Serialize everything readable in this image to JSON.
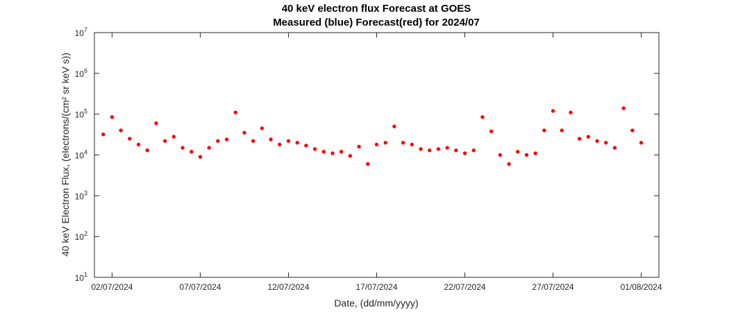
{
  "chart_data": {
    "type": "scatter",
    "title": "40 keV electron flux Forecast at GOES",
    "subtitle": "Measured (blue) Forecast(red) for 2024/07",
    "xlabel": "Date, (dd/mm/yyyy)",
    "ylabel": "40 keV Electron Flux, (electrons/(cm² sr keV s))",
    "yscale": "log",
    "ylim": [
      10,
      10000000
    ],
    "xlim": [
      "2024-07-01T00:00",
      "2024-08-02T00:00"
    ],
    "grid": false,
    "x_ticks": [
      "02/07/2024",
      "07/07/2024",
      "12/07/2024",
      "17/07/2024",
      "22/07/2024",
      "27/07/2024",
      "01/08/2024"
    ],
    "y_ticks": [
      {
        "base": "10",
        "exp": "1"
      },
      {
        "base": "10",
        "exp": "2"
      },
      {
        "base": "10",
        "exp": "3"
      },
      {
        "base": "10",
        "exp": "4"
      },
      {
        "base": "10",
        "exp": "5"
      },
      {
        "base": "10",
        "exp": "6"
      },
      {
        "base": "10",
        "exp": "7"
      }
    ],
    "marker_color": "#ff0000",
    "series": [
      {
        "x": [
          "2024-07-01T12:00",
          "2024-07-02T00:00",
          "2024-07-02T12:00",
          "2024-07-03T00:00",
          "2024-07-03T12:00",
          "2024-07-04T00:00",
          "2024-07-04T12:00",
          "2024-07-05T00:00",
          "2024-07-05T12:00",
          "2024-07-06T00:00",
          "2024-07-06T12:00",
          "2024-07-07T00:00",
          "2024-07-07T12:00",
          "2024-07-08T00:00",
          "2024-07-08T12:00",
          "2024-07-09T00:00",
          "2024-07-09T12:00",
          "2024-07-10T00:00",
          "2024-07-10T12:00",
          "2024-07-11T00:00",
          "2024-07-11T12:00",
          "2024-07-12T00:00",
          "2024-07-12T12:00",
          "2024-07-13T00:00",
          "2024-07-13T12:00",
          "2024-07-14T00:00",
          "2024-07-14T12:00",
          "2024-07-15T00:00",
          "2024-07-15T12:00",
          "2024-07-16T00:00",
          "2024-07-16T12:00",
          "2024-07-17T00:00",
          "2024-07-17T12:00",
          "2024-07-18T00:00",
          "2024-07-18T12:00",
          "2024-07-19T00:00",
          "2024-07-19T12:00",
          "2024-07-20T00:00",
          "2024-07-20T12:00",
          "2024-07-21T00:00",
          "2024-07-21T12:00",
          "2024-07-22T00:00",
          "2024-07-22T12:00",
          "2024-07-23T00:00",
          "2024-07-23T12:00",
          "2024-07-24T00:00",
          "2024-07-24T12:00",
          "2024-07-25T00:00",
          "2024-07-25T12:00",
          "2024-07-26T00:00",
          "2024-07-26T12:00",
          "2024-07-27T00:00",
          "2024-07-27T12:00",
          "2024-07-28T00:00",
          "2024-07-28T12:00",
          "2024-07-29T00:00",
          "2024-07-29T12:00",
          "2024-07-30T00:00",
          "2024-07-30T12:00",
          "2024-07-31T00:00",
          "2024-07-31T12:00",
          "2024-08-01T00:00"
        ],
        "values": [
          32000,
          85000,
          40000,
          25000,
          18000,
          13000,
          60000,
          22000,
          28000,
          15000,
          12000,
          9000,
          15000,
          22000,
          24000,
          110000,
          35000,
          22000,
          45000,
          24000,
          18000,
          22000,
          20000,
          17000,
          14000,
          12000,
          11000,
          12000,
          9500,
          16000,
          6000,
          18000,
          20000,
          50000,
          20000,
          18000,
          14000,
          13000,
          14000,
          15000,
          13000,
          11000,
          13000,
          85000,
          38000,
          10000,
          6000,
          12000,
          10000,
          11000,
          40000,
          120000,
          40000,
          110000,
          25000,
          28000,
          22000,
          20000,
          15000,
          140000,
          40000,
          20000
        ]
      }
    ]
  }
}
